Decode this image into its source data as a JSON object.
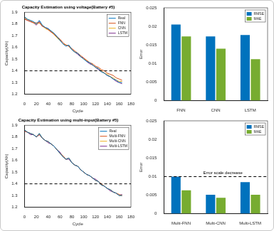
{
  "chart_data": [
    {
      "type": "line",
      "title": "Capacity Estimation using voltage(Battery #5)",
      "x_label": "Cycle",
      "y_label": "Capacity(Ah)",
      "x": [
        0,
        5,
        10,
        15,
        20,
        25,
        30,
        35,
        40,
        45,
        50,
        55,
        60,
        65,
        70,
        75,
        80,
        85,
        90,
        95,
        100,
        105,
        110,
        115,
        120,
        125,
        130,
        135,
        140,
        145,
        150,
        155,
        160,
        165
      ],
      "series": [
        {
          "name": "Real",
          "color": "#0072BD",
          "values": [
            1.86,
            1.84,
            1.83,
            1.82,
            1.8,
            1.83,
            1.79,
            1.77,
            1.76,
            1.74,
            1.72,
            1.69,
            1.66,
            1.63,
            1.61,
            1.62,
            1.58,
            1.56,
            1.55,
            1.52,
            1.5,
            1.48,
            1.47,
            1.45,
            1.43,
            1.42,
            1.39,
            1.38,
            1.36,
            1.35,
            1.33,
            1.32,
            1.3,
            1.3
          ]
        },
        {
          "name": "FNN",
          "color": "#D95319",
          "values": [
            1.84,
            1.83,
            1.82,
            1.81,
            1.81,
            1.81,
            1.78,
            1.77,
            1.75,
            1.73,
            1.71,
            1.69,
            1.67,
            1.64,
            1.62,
            1.61,
            1.59,
            1.57,
            1.55,
            1.53,
            1.51,
            1.49,
            1.47,
            1.46,
            1.44,
            1.43,
            1.41,
            1.4,
            1.38,
            1.37,
            1.36,
            1.34,
            1.33,
            1.32
          ]
        },
        {
          "name": "CNN",
          "color": "#EDB120",
          "values": [
            1.85,
            1.84,
            1.83,
            1.81,
            1.8,
            1.81,
            1.79,
            1.76,
            1.75,
            1.74,
            1.71,
            1.68,
            1.66,
            1.63,
            1.62,
            1.61,
            1.58,
            1.56,
            1.55,
            1.52,
            1.5,
            1.49,
            1.47,
            1.45,
            1.43,
            1.42,
            1.4,
            1.38,
            1.37,
            1.35,
            1.34,
            1.32,
            1.31,
            1.31
          ]
        },
        {
          "name": "LSTM",
          "color": "#7E2F8E",
          "values": [
            1.85,
            1.83,
            1.82,
            1.81,
            1.79,
            1.82,
            1.78,
            1.77,
            1.76,
            1.73,
            1.72,
            1.69,
            1.66,
            1.63,
            1.62,
            1.61,
            1.58,
            1.56,
            1.54,
            1.52,
            1.51,
            1.48,
            1.46,
            1.45,
            1.43,
            1.41,
            1.4,
            1.38,
            1.36,
            1.35,
            1.33,
            1.31,
            1.3,
            1.29
          ]
        }
      ],
      "xlim": [
        0,
        180
      ],
      "xticks": [
        0,
        20,
        40,
        60,
        80,
        100,
        120,
        140,
        160,
        180
      ],
      "ylim": [
        1.2,
        1.9
      ],
      "yticks": [
        1.2,
        1.3,
        1.4,
        1.5,
        1.6,
        1.7,
        1.8,
        1.9
      ],
      "threshold": 1.4,
      "grid": false,
      "legend": "top-right"
    },
    {
      "type": "bar",
      "y_label": "Error",
      "categories": [
        "FNN",
        "CNN",
        "LSTM"
      ],
      "series": [
        {
          "name": "RMSE",
          "color": "#0072BD",
          "values": [
            0.0205,
            0.0173,
            0.0177
          ]
        },
        {
          "name": "MAE",
          "color": "#77AC30",
          "values": [
            0.0173,
            0.014,
            0.0112
          ]
        }
      ],
      "ylim": [
        0,
        0.025
      ],
      "yticks": [
        0,
        0.005,
        0.01,
        0.015,
        0.02,
        0.025
      ],
      "grid": false,
      "legend": "top-right"
    },
    {
      "type": "line",
      "title": "Capacity Estimation using multi-input(Battery #5)",
      "x_label": "Cycle",
      "y_label": "Capacity(Ah)",
      "x": [
        0,
        5,
        10,
        15,
        20,
        25,
        30,
        35,
        40,
        45,
        50,
        55,
        60,
        65,
        70,
        75,
        80,
        85,
        90,
        95,
        100,
        105,
        110,
        115,
        120,
        125,
        130,
        135,
        140,
        145,
        150,
        155,
        160,
        165
      ],
      "series": [
        {
          "name": "Real",
          "color": "#0072BD",
          "values": [
            1.86,
            1.84,
            1.83,
            1.82,
            1.8,
            1.83,
            1.79,
            1.77,
            1.76,
            1.74,
            1.72,
            1.69,
            1.66,
            1.63,
            1.61,
            1.62,
            1.58,
            1.56,
            1.55,
            1.52,
            1.5,
            1.48,
            1.47,
            1.45,
            1.43,
            1.42,
            1.39,
            1.38,
            1.36,
            1.35,
            1.33,
            1.32,
            1.3,
            1.3
          ]
        },
        {
          "name": "Multi-FNN",
          "color": "#D95319",
          "values": [
            1.85,
            1.84,
            1.83,
            1.82,
            1.8,
            1.82,
            1.79,
            1.77,
            1.76,
            1.74,
            1.72,
            1.69,
            1.66,
            1.64,
            1.61,
            1.62,
            1.58,
            1.56,
            1.55,
            1.52,
            1.5,
            1.48,
            1.47,
            1.45,
            1.43,
            1.42,
            1.4,
            1.38,
            1.36,
            1.35,
            1.33,
            1.32,
            1.31,
            1.3
          ]
        },
        {
          "name": "Multi-CNN",
          "color": "#EDB120",
          "values": [
            1.86,
            1.84,
            1.83,
            1.82,
            1.8,
            1.83,
            1.79,
            1.77,
            1.76,
            1.74,
            1.72,
            1.69,
            1.66,
            1.63,
            1.61,
            1.62,
            1.58,
            1.56,
            1.55,
            1.52,
            1.5,
            1.48,
            1.47,
            1.45,
            1.43,
            1.42,
            1.39,
            1.38,
            1.36,
            1.35,
            1.33,
            1.32,
            1.3,
            1.3
          ]
        },
        {
          "name": "Multi-LSTM",
          "color": "#7E2F8E",
          "values": [
            1.85,
            1.84,
            1.82,
            1.82,
            1.8,
            1.82,
            1.79,
            1.77,
            1.75,
            1.74,
            1.72,
            1.69,
            1.67,
            1.63,
            1.61,
            1.61,
            1.58,
            1.56,
            1.55,
            1.52,
            1.5,
            1.48,
            1.47,
            1.45,
            1.44,
            1.42,
            1.39,
            1.38,
            1.36,
            1.34,
            1.33,
            1.32,
            1.3,
            1.31
          ]
        }
      ],
      "xlim": [
        0,
        180
      ],
      "xticks": [
        0,
        20,
        40,
        60,
        80,
        100,
        120,
        140,
        160,
        180
      ],
      "ylim": [
        1.2,
        1.9
      ],
      "yticks": [
        1.2,
        1.3,
        1.4,
        1.5,
        1.6,
        1.7,
        1.8,
        1.9
      ],
      "threshold": 1.4,
      "grid": false,
      "legend": "top-right"
    },
    {
      "type": "bar",
      "y_label": "Error",
      "categories": [
        "Multi-FNN",
        "Multi-CNN",
        "Multi-LSTM"
      ],
      "series": [
        {
          "name": "RMSE",
          "color": "#0072BD",
          "values": [
            0.01,
            0.0051,
            0.0085
          ]
        },
        {
          "name": "MAE",
          "color": "#77AC30",
          "values": [
            0.0063,
            0.0043,
            0.0051
          ]
        }
      ],
      "ylim": [
        0,
        0.025
      ],
      "yticks": [
        0,
        0.005,
        0.01,
        0.015,
        0.02,
        0.025
      ],
      "threshold": 0.01,
      "annotation": "Error scale decrease",
      "grid": false,
      "legend": "top-right"
    }
  ]
}
